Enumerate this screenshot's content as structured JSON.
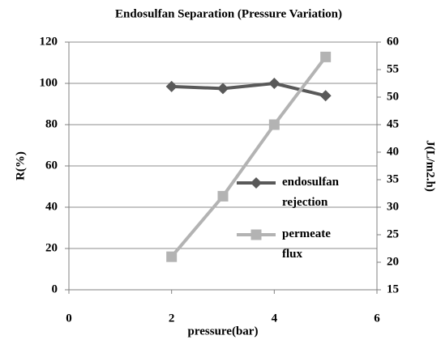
{
  "chart_data": {
    "type": "line",
    "title": "Endosulfan Separation (Pressure Variation)",
    "x_label": "pressure(bar)",
    "y_label": "R(%)",
    "y2_label": "J(L/m2.h)",
    "x": [
      2,
      3,
      4,
      5
    ],
    "series": [
      {
        "name": "endosulfan rejection",
        "color": "#595959",
        "marker": "diamond",
        "values": [
          98.5,
          97.5,
          100,
          94
        ]
      },
      {
        "name": "permeate flux",
        "color": "#b3b3b3",
        "marker": "square",
        "axis": "y2",
        "values": [
          21,
          32,
          45,
          57.3
        ]
      }
    ],
    "xlim": [
      0,
      6
    ],
    "xticks": [
      0,
      2,
      4,
      6
    ],
    "ylim": [
      0,
      120
    ],
    "yticks": [
      0,
      20,
      40,
      60,
      80,
      100,
      120
    ],
    "y2lim": [
      15,
      60
    ],
    "y2ticks": [
      15,
      20,
      25,
      30,
      35,
      40,
      45,
      50,
      55,
      60
    ],
    "grid": true
  }
}
